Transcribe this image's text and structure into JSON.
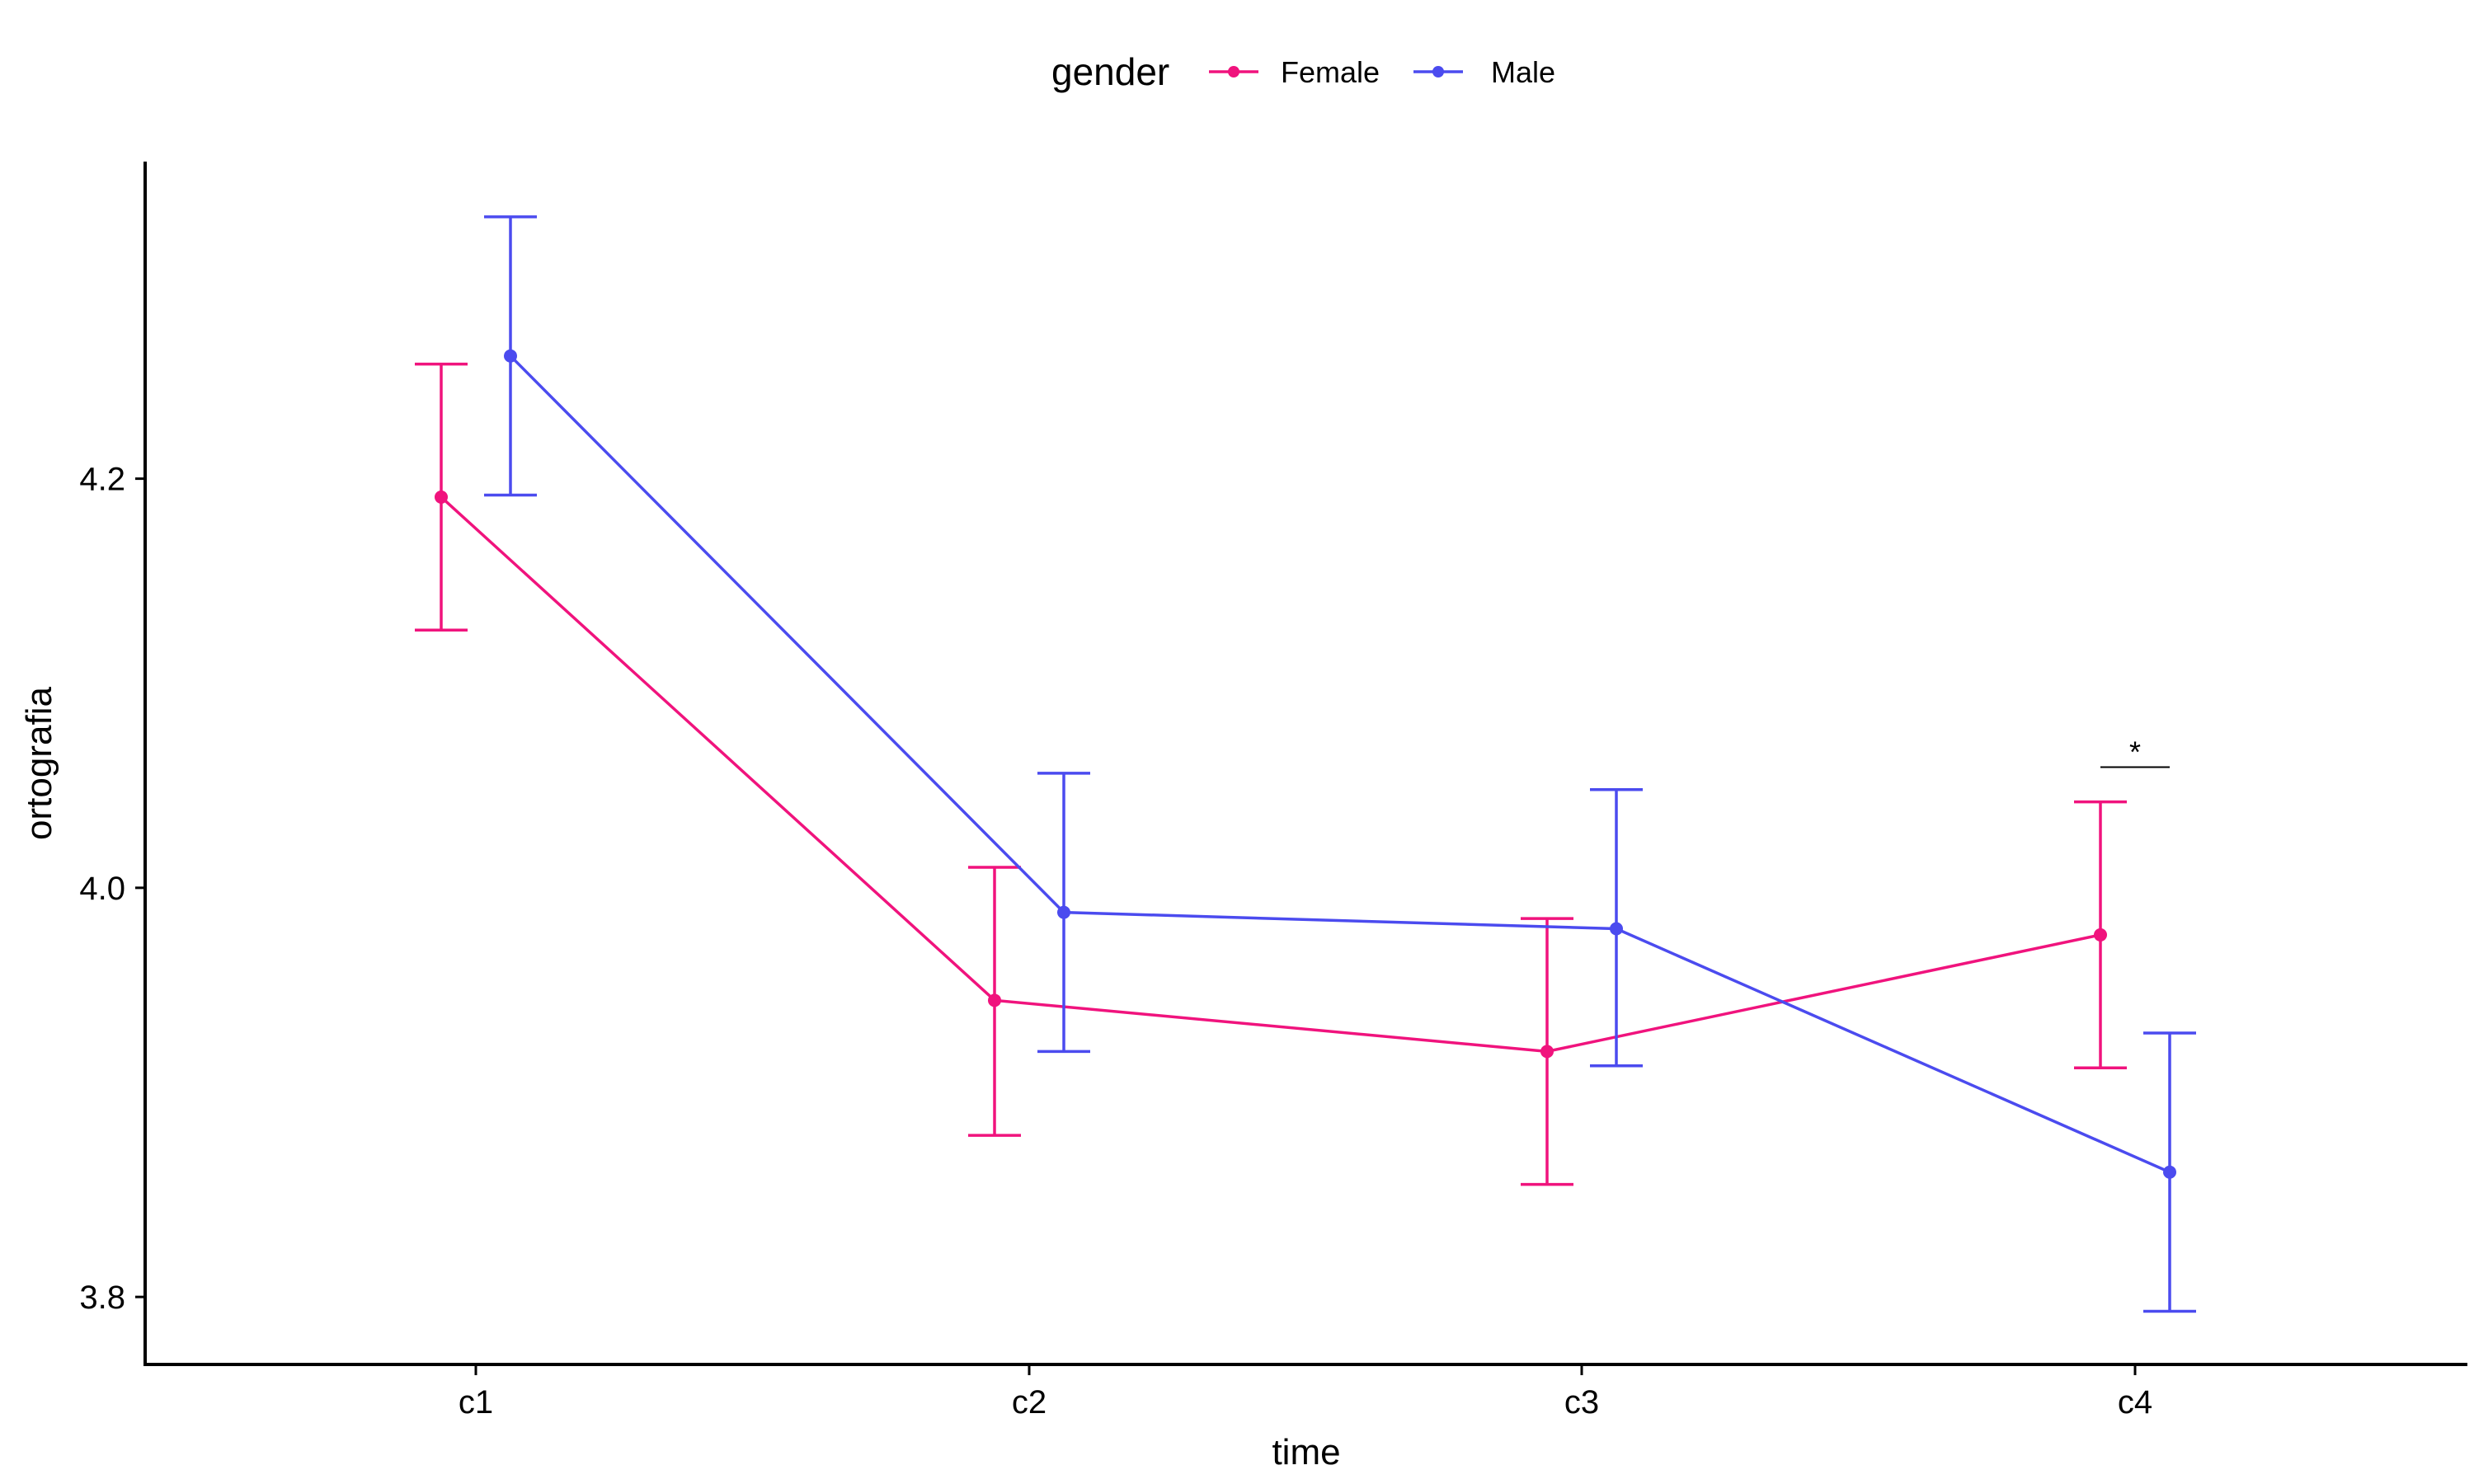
{
  "chart_data": {
    "type": "line",
    "title": "",
    "xlabel": "time",
    "ylabel": "ortografia",
    "categories": [
      "c1",
      "c2",
      "c3",
      "c4"
    ],
    "ylim": [
      3.767,
      4.355
    ],
    "yticks": [
      3.8,
      4.0,
      4.2
    ],
    "ytick_labels": [
      "3.8",
      "4.0",
      "4.2"
    ],
    "grid": false,
    "legend": {
      "title": "gender",
      "placement": "top",
      "entries": [
        "Female",
        "Male"
      ]
    },
    "series": [
      {
        "name": "Female",
        "color": "#f0137d",
        "values": [
          4.191,
          3.945,
          3.92,
          3.977
        ],
        "error_low": [
          4.126,
          3.879,
          3.855,
          3.912
        ],
        "error_high": [
          4.256,
          4.01,
          3.985,
          4.042
        ]
      },
      {
        "name": "Male",
        "color": "#4b4bef",
        "values": [
          4.26,
          3.988,
          3.98,
          3.861
        ],
        "error_low": [
          4.192,
          3.92,
          3.913,
          3.793
        ],
        "error_high": [
          4.328,
          4.056,
          4.048,
          3.929
        ]
      }
    ],
    "annotations": [
      {
        "category": "c4",
        "text": "*",
        "y": 4.059
      }
    ]
  }
}
